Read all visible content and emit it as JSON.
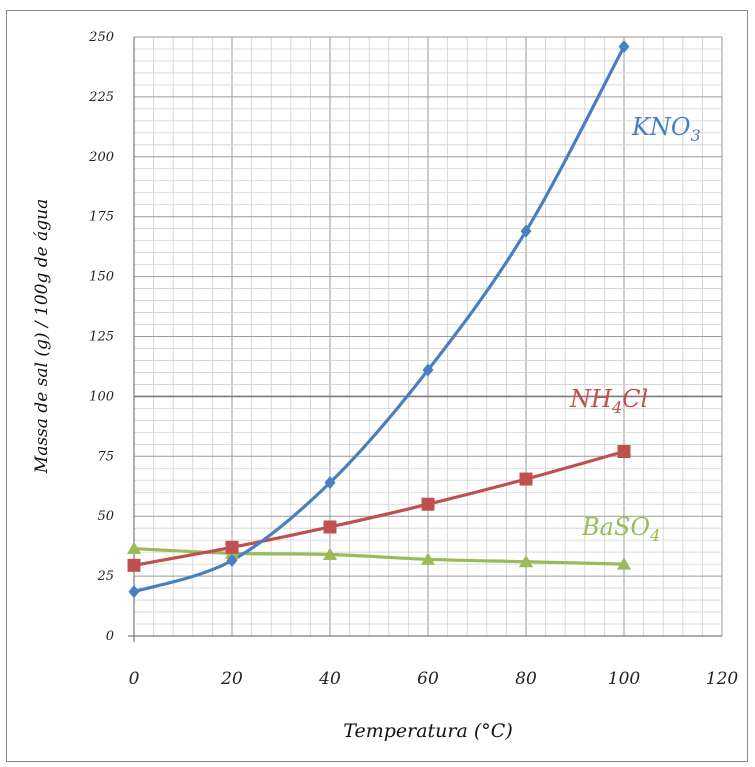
{
  "chart_data": {
    "type": "line",
    "xlabel": "Temperatura (°C)",
    "ylabel": "Massa de sal (g) / 100g de água",
    "xlim": [
      0,
      120
    ],
    "ylim": [
      0,
      250
    ],
    "x_ticks": [
      "0",
      "20",
      "40",
      "60",
      "80",
      "100",
      "120"
    ],
    "y_ticks": [
      "0",
      "25",
      "50",
      "75",
      "100",
      "125",
      "150",
      "175",
      "200",
      "225",
      "250"
    ],
    "grid": true,
    "x": [
      0,
      20,
      40,
      60,
      80,
      100
    ],
    "series": [
      {
        "name": "KNO",
        "subscript": "3",
        "color": "#4a7ec2",
        "marker": "diamond",
        "values": [
          18.5,
          31.5,
          64,
          111,
          169,
          246
        ]
      },
      {
        "name": "NH",
        "subscript": "4",
        "suffix": "Cl",
        "color": "#c0504d",
        "marker": "square",
        "values": [
          29.5,
          37,
          45.5,
          55,
          65.5,
          77
        ]
      },
      {
        "name": "BaSO",
        "subscript": "4",
        "color": "#9bbb59",
        "marker": "triangle",
        "values": [
          36.5,
          34.5,
          34,
          32,
          31,
          30
        ]
      }
    ]
  }
}
